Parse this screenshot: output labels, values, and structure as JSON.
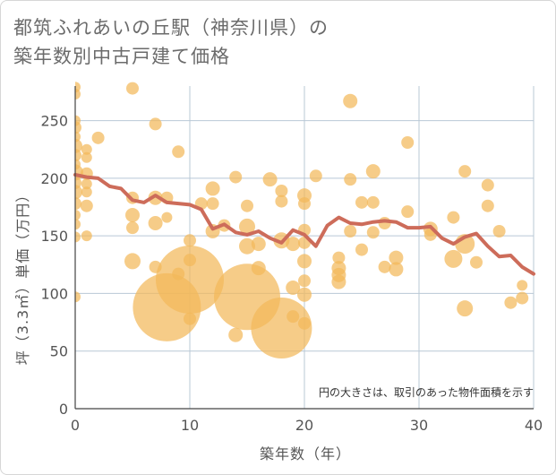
{
  "title_line1": "都筑ふれあいの丘駅（神奈川県）の",
  "title_line2": "築年数別中古戸建て価格",
  "chart_data": {
    "type": "scatter",
    "xlabel": "築年数（年）",
    "ylabel": "坪（3.3㎡）単価（万円）",
    "xlim": [
      0,
      40
    ],
    "ylim": [
      0,
      280
    ],
    "xticks": [
      0,
      10,
      20,
      30,
      40
    ],
    "yticks": [
      0,
      50,
      100,
      150,
      200,
      250
    ],
    "grid": true,
    "note": "円の大きさは、取引のあった物件面積を示す",
    "colors": {
      "bubble": "#f3b95a",
      "line": "#cd6c5a",
      "grid": "#b9c8d6"
    },
    "bubbles": [
      {
        "x": 0,
        "y": 279,
        "r": 6
      },
      {
        "x": 0,
        "y": 273,
        "r": 6
      },
      {
        "x": 0,
        "y": 250,
        "r": 6
      },
      {
        "x": 0,
        "y": 244,
        "r": 7
      },
      {
        "x": 0,
        "y": 236,
        "r": 6
      },
      {
        "x": 0,
        "y": 228,
        "r": 8
      },
      {
        "x": 0,
        "y": 220,
        "r": 7
      },
      {
        "x": 0,
        "y": 212,
        "r": 6
      },
      {
        "x": 0,
        "y": 205,
        "r": 9
      },
      {
        "x": 0,
        "y": 196,
        "r": 7
      },
      {
        "x": 0,
        "y": 188,
        "r": 8
      },
      {
        "x": 0,
        "y": 178,
        "r": 7
      },
      {
        "x": 0,
        "y": 168,
        "r": 6
      },
      {
        "x": 0,
        "y": 160,
        "r": 6
      },
      {
        "x": 0,
        "y": 149,
        "r": 6
      },
      {
        "x": 0,
        "y": 97,
        "r": 6
      },
      {
        "x": 1,
        "y": 225,
        "r": 6
      },
      {
        "x": 1,
        "y": 218,
        "r": 6
      },
      {
        "x": 1,
        "y": 204,
        "r": 7
      },
      {
        "x": 1,
        "y": 195,
        "r": 6
      },
      {
        "x": 1,
        "y": 188,
        "r": 6
      },
      {
        "x": 1,
        "y": 176,
        "r": 7
      },
      {
        "x": 1,
        "y": 150,
        "r": 6
      },
      {
        "x": 2,
        "y": 235,
        "r": 7
      },
      {
        "x": 5,
        "y": 278,
        "r": 7
      },
      {
        "x": 5,
        "y": 183,
        "r": 7
      },
      {
        "x": 5,
        "y": 168,
        "r": 8
      },
      {
        "x": 5,
        "y": 157,
        "r": 7
      },
      {
        "x": 5,
        "y": 128,
        "r": 9
      },
      {
        "x": 7,
        "y": 247,
        "r": 7
      },
      {
        "x": 7,
        "y": 183,
        "r": 8
      },
      {
        "x": 7,
        "y": 161,
        "r": 8
      },
      {
        "x": 7,
        "y": 123,
        "r": 7
      },
      {
        "x": 8,
        "y": 183,
        "r": 7
      },
      {
        "x": 8,
        "y": 166,
        "r": 6
      },
      {
        "x": 8,
        "y": 88,
        "r": 38
      },
      {
        "x": 9,
        "y": 223,
        "r": 7
      },
      {
        "x": 9,
        "y": 117,
        "r": 7
      },
      {
        "x": 10,
        "y": 146,
        "r": 7
      },
      {
        "x": 10,
        "y": 129,
        "r": 7
      },
      {
        "x": 10,
        "y": 112,
        "r": 38
      },
      {
        "x": 10,
        "y": 78,
        "r": 7
      },
      {
        "x": 11,
        "y": 178,
        "r": 7
      },
      {
        "x": 12,
        "y": 191,
        "r": 8
      },
      {
        "x": 12,
        "y": 178,
        "r": 7
      },
      {
        "x": 12,
        "y": 154,
        "r": 8
      },
      {
        "x": 13,
        "y": 159,
        "r": 7
      },
      {
        "x": 14,
        "y": 201,
        "r": 7
      },
      {
        "x": 14,
        "y": 64,
        "r": 8
      },
      {
        "x": 15,
        "y": 176,
        "r": 7
      },
      {
        "x": 15,
        "y": 158,
        "r": 9
      },
      {
        "x": 15,
        "y": 141,
        "r": 9
      },
      {
        "x": 15,
        "y": 97,
        "r": 37
      },
      {
        "x": 16,
        "y": 143,
        "r": 8
      },
      {
        "x": 16,
        "y": 122,
        "r": 8
      },
      {
        "x": 17,
        "y": 199,
        "r": 8
      },
      {
        "x": 18,
        "y": 189,
        "r": 7
      },
      {
        "x": 18,
        "y": 180,
        "r": 7
      },
      {
        "x": 18,
        "y": 146,
        "r": 9
      },
      {
        "x": 18,
        "y": 70,
        "r": 34
      },
      {
        "x": 19,
        "y": 143,
        "r": 8
      },
      {
        "x": 19,
        "y": 105,
        "r": 8
      },
      {
        "x": 19,
        "y": 80,
        "r": 7
      },
      {
        "x": 20,
        "y": 185,
        "r": 8
      },
      {
        "x": 20,
        "y": 178,
        "r": 7
      },
      {
        "x": 20,
        "y": 155,
        "r": 7
      },
      {
        "x": 20,
        "y": 144,
        "r": 7
      },
      {
        "x": 20,
        "y": 128,
        "r": 8
      },
      {
        "x": 20,
        "y": 111,
        "r": 7
      },
      {
        "x": 20,
        "y": 99,
        "r": 8
      },
      {
        "x": 20,
        "y": 74,
        "r": 7
      },
      {
        "x": 21,
        "y": 202,
        "r": 7
      },
      {
        "x": 23,
        "y": 131,
        "r": 7
      },
      {
        "x": 23,
        "y": 122,
        "r": 8
      },
      {
        "x": 23,
        "y": 116,
        "r": 8
      },
      {
        "x": 23,
        "y": 110,
        "r": 8
      },
      {
        "x": 24,
        "y": 267,
        "r": 8
      },
      {
        "x": 24,
        "y": 199,
        "r": 7
      },
      {
        "x": 24,
        "y": 154,
        "r": 7
      },
      {
        "x": 25,
        "y": 179,
        "r": 7
      },
      {
        "x": 25,
        "y": 138,
        "r": 7
      },
      {
        "x": 26,
        "y": 206,
        "r": 8
      },
      {
        "x": 26,
        "y": 179,
        "r": 7
      },
      {
        "x": 26,
        "y": 153,
        "r": 7
      },
      {
        "x": 27,
        "y": 161,
        "r": 7
      },
      {
        "x": 27,
        "y": 123,
        "r": 7
      },
      {
        "x": 28,
        "y": 131,
        "r": 8
      },
      {
        "x": 28,
        "y": 121,
        "r": 8
      },
      {
        "x": 29,
        "y": 231,
        "r": 7
      },
      {
        "x": 29,
        "y": 171,
        "r": 7
      },
      {
        "x": 31,
        "y": 156,
        "r": 8
      },
      {
        "x": 31,
        "y": 151,
        "r": 7
      },
      {
        "x": 33,
        "y": 166,
        "r": 7
      },
      {
        "x": 33,
        "y": 130,
        "r": 10
      },
      {
        "x": 34,
        "y": 206,
        "r": 7
      },
      {
        "x": 34,
        "y": 143,
        "r": 11
      },
      {
        "x": 34,
        "y": 87,
        "r": 9
      },
      {
        "x": 35,
        "y": 127,
        "r": 7
      },
      {
        "x": 36,
        "y": 194,
        "r": 7
      },
      {
        "x": 36,
        "y": 176,
        "r": 7
      },
      {
        "x": 37,
        "y": 154,
        "r": 7
      },
      {
        "x": 38,
        "y": 92,
        "r": 7
      },
      {
        "x": 39,
        "y": 107,
        "r": 6
      },
      {
        "x": 39,
        "y": 96,
        "r": 7
      }
    ],
    "trend": [
      {
        "x": 0,
        "y": 203
      },
      {
        "x": 1,
        "y": 201
      },
      {
        "x": 2,
        "y": 200
      },
      {
        "x": 3,
        "y": 193
      },
      {
        "x": 4,
        "y": 191
      },
      {
        "x": 5,
        "y": 181
      },
      {
        "x": 6,
        "y": 179
      },
      {
        "x": 7,
        "y": 185
      },
      {
        "x": 8,
        "y": 179
      },
      {
        "x": 9,
        "y": 178
      },
      {
        "x": 10,
        "y": 177
      },
      {
        "x": 11,
        "y": 173
      },
      {
        "x": 12,
        "y": 156
      },
      {
        "x": 13,
        "y": 160
      },
      {
        "x": 14,
        "y": 153
      },
      {
        "x": 15,
        "y": 151
      },
      {
        "x": 16,
        "y": 154
      },
      {
        "x": 17,
        "y": 148
      },
      {
        "x": 18,
        "y": 144
      },
      {
        "x": 19,
        "y": 155
      },
      {
        "x": 20,
        "y": 151
      },
      {
        "x": 21,
        "y": 141
      },
      {
        "x": 22,
        "y": 159
      },
      {
        "x": 23,
        "y": 166
      },
      {
        "x": 24,
        "y": 161
      },
      {
        "x": 25,
        "y": 160
      },
      {
        "x": 26,
        "y": 162
      },
      {
        "x": 27,
        "y": 163
      },
      {
        "x": 28,
        "y": 162
      },
      {
        "x": 29,
        "y": 157
      },
      {
        "x": 30,
        "y": 157
      },
      {
        "x": 31,
        "y": 158
      },
      {
        "x": 32,
        "y": 148
      },
      {
        "x": 33,
        "y": 143
      },
      {
        "x": 34,
        "y": 149
      },
      {
        "x": 35,
        "y": 152
      },
      {
        "x": 36,
        "y": 141
      },
      {
        "x": 37,
        "y": 132
      },
      {
        "x": 38,
        "y": 133
      },
      {
        "x": 39,
        "y": 123
      },
      {
        "x": 40,
        "y": 117
      }
    ]
  }
}
